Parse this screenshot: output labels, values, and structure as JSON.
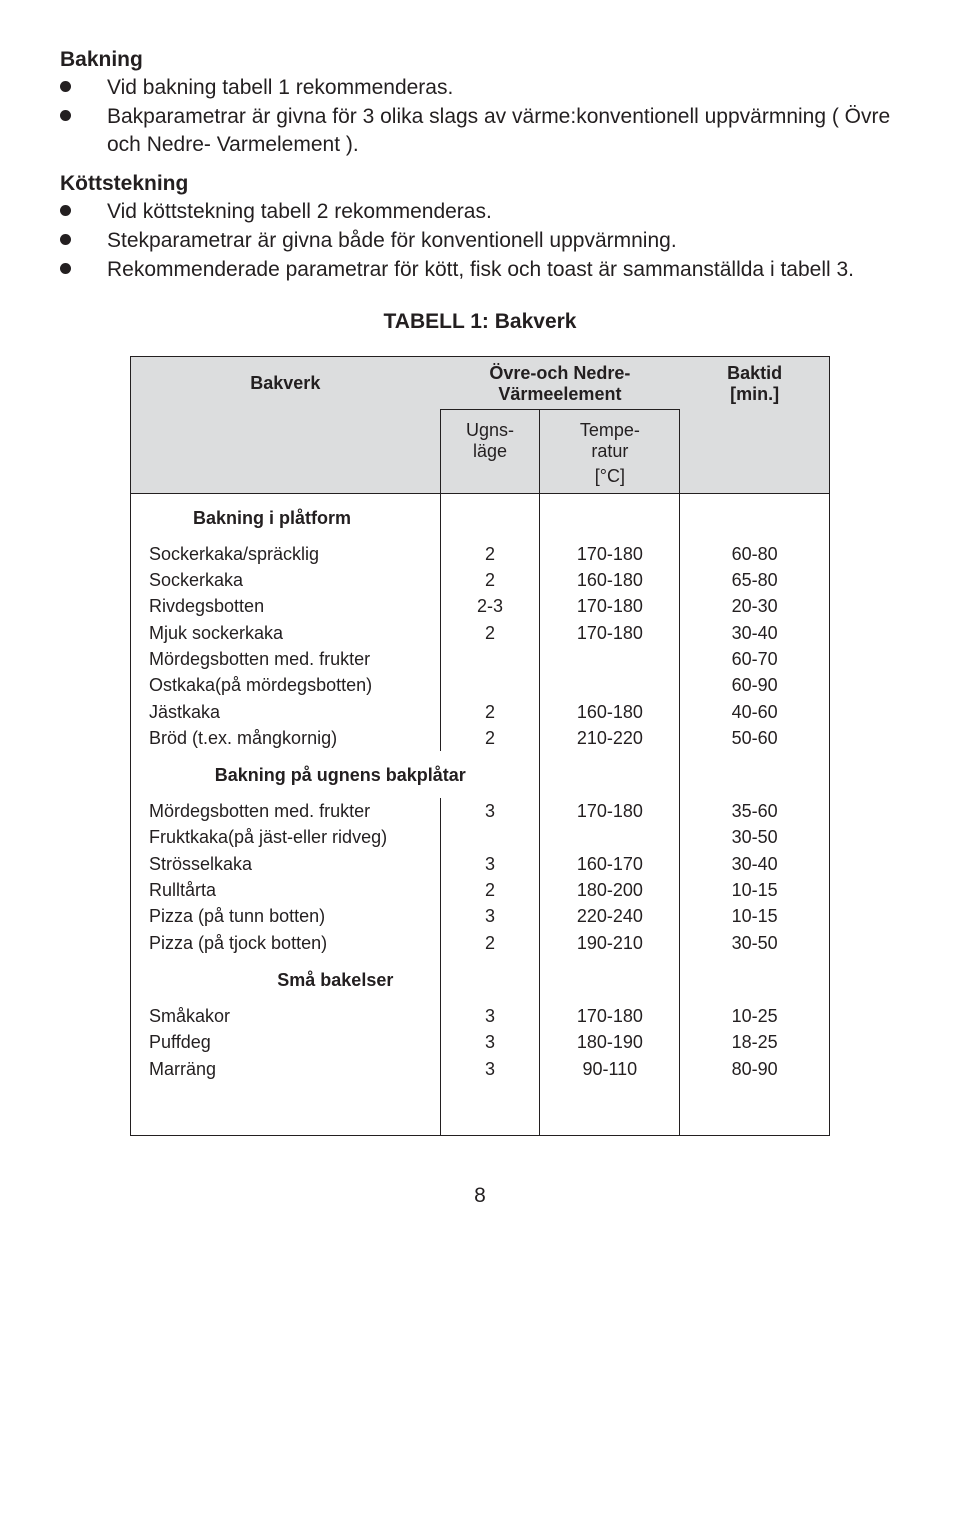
{
  "sections": {
    "baking": {
      "heading": "Bakning",
      "bullets": [
        "Vid bakning tabell 1 rekommenderas.",
        "Bakparametrar är givna för 3 olika slags av värme:konventionell uppvärmning ( Övre och Nedre- Varmelement )."
      ]
    },
    "meat": {
      "heading": "Köttstekning",
      "bullets": [
        "Vid köttstekning tabell 2 rekommenderas.",
        "Stekparametrar är givna både för konventionell uppvärmning.",
        "Rekommenderade parametrar för kött, fisk och toast är sammanställda i tabell 3."
      ]
    }
  },
  "table": {
    "title": "TABELL 1: Bakverk",
    "header": {
      "bakverk": "Bakverk",
      "ovre": "Övre-och Nedre-\nVärmeelement",
      "tid": "Baktid\n[min.]",
      "lage": "Ugns-\nläge",
      "temp": "Tempe-\nratur",
      "temp_unit": "[°C]"
    },
    "groups": [
      {
        "label": "Bakning i plåtform",
        "label_align": "left",
        "rows": [
          {
            "name": "Sockerkaka/spräcklig",
            "lage": "2",
            "temp": "170-180",
            "tid": "60-80"
          },
          {
            "name": "Sockerkaka",
            "lage": "2",
            "temp": "160-180",
            "tid": "65-80"
          },
          {
            "name": "Rivdegsbotten",
            "lage": "2-3",
            "temp": "170-180",
            "tid": "20-30"
          },
          {
            "name": "Mjuk sockerkaka",
            "lage": "2",
            "temp": "170-180",
            "tid": "30-40"
          },
          {
            "name": "Mördegsbotten med. frukter",
            "lage": "",
            "temp": "",
            "tid": "60-70"
          },
          {
            "name": "Ostkaka(på mördegsbotten)",
            "lage": "",
            "temp": "",
            "tid": "60-90"
          },
          {
            "name": "Jästkaka",
            "lage": "2",
            "temp": "160-180",
            "tid": "40-60"
          },
          {
            "name": "Bröd (t.ex. mångkornig)",
            "lage": "2",
            "temp": "210-220",
            "tid": "50-60"
          }
        ]
      },
      {
        "label": "Bakning på ugnens bakplåtar",
        "label_align": "center",
        "rows": [
          {
            "name": "Mördegsbotten med. frukter",
            "lage": "3",
            "temp": "170-180",
            "tid": "35-60"
          },
          {
            "name": "Fruktkaka(på jäst-eller ridveg)",
            "lage": "",
            "temp": "",
            "tid": "30-50"
          },
          {
            "name": "Strösselkaka",
            "lage": "3",
            "temp": "160-170",
            "tid": "30-40"
          },
          {
            "name": "Rulltårta",
            "lage": "2",
            "temp": "180-200",
            "tid": "10-15"
          },
          {
            "name": "Pizza (på tunn botten)",
            "lage": "3",
            "temp": "220-240",
            "tid": "10-15"
          },
          {
            "name": "Pizza (på tjock botten)",
            "lage": "2",
            "temp": "190-210",
            "tid": "30-50"
          }
        ]
      },
      {
        "label": "Små bakelser",
        "label_align": "center-ish",
        "rows": [
          {
            "name": "Småkakor",
            "lage": "3",
            "temp": "170-180",
            "tid": "10-25"
          },
          {
            "name": "Puffdeg",
            "lage": "3",
            "temp": "180-190",
            "tid": "18-25"
          },
          {
            "name": "Marräng",
            "lage": "3",
            "temp": "90-110",
            "tid": "80-90"
          }
        ]
      }
    ]
  },
  "page_number": "8"
}
